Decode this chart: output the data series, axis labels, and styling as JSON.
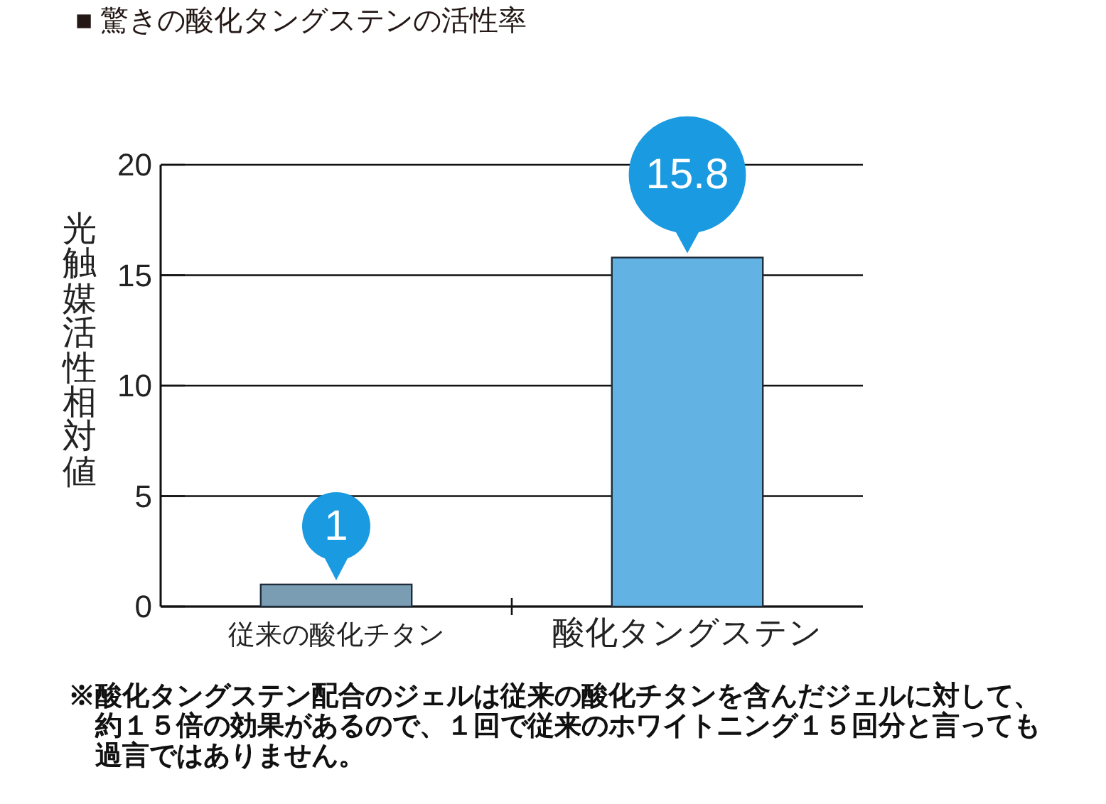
{
  "chart_data": {
    "type": "bar",
    "title": "■ 驚きの酸化タングステンの活性率",
    "ylabel": "光触媒活性相対値",
    "categories": [
      "従来の酸化チタン",
      "酸化タングステン"
    ],
    "values": [
      1,
      15.8
    ],
    "colors": [
      "#7b9db3",
      "#62b3e4"
    ],
    "ylim": [
      0,
      20
    ],
    "yticks": [
      0,
      5,
      10,
      15,
      20
    ],
    "grid": "y",
    "data_labels": true,
    "annotations": [
      "※酸化タングステン配合のジェルは従来の酸化チタンを含んだジェルに対して、約１５倍の効果があるので、１回で従来のホワイトニング１５回分と言っても過言ではありません。"
    ]
  }
}
